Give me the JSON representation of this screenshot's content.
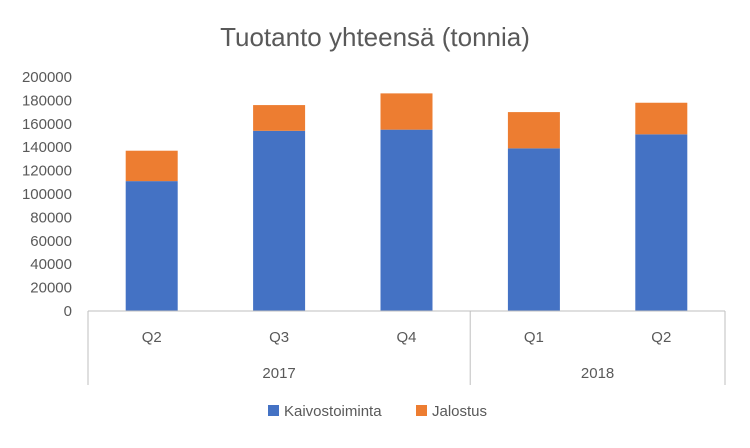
{
  "chart_data": {
    "type": "bar",
    "stacked": true,
    "title": "Tuotanto yhteensä (tonnia)",
    "xlabel": "",
    "ylabel": "",
    "ylim": [
      0,
      200000
    ],
    "yticks": [
      "0",
      "20000",
      "40000",
      "60000",
      "80000",
      "100000",
      "120000",
      "140000",
      "160000",
      "180000",
      "200000"
    ],
    "categories": [
      "Q2",
      "Q3",
      "Q4",
      "Q1",
      "Q2"
    ],
    "groups": [
      {
        "label": "2017",
        "count": 3
      },
      {
        "label": "2018",
        "count": 2
      }
    ],
    "series": [
      {
        "name": "Kaivostoiminta",
        "color": "#4472C4",
        "values": [
          111000,
          154000,
          155000,
          139000,
          151000
        ]
      },
      {
        "name": "Jalostus",
        "color": "#ED7D31",
        "values": [
          26000,
          22000,
          31000,
          31000,
          27000
        ]
      }
    ],
    "grid": false,
    "legend_position": "bottom"
  }
}
